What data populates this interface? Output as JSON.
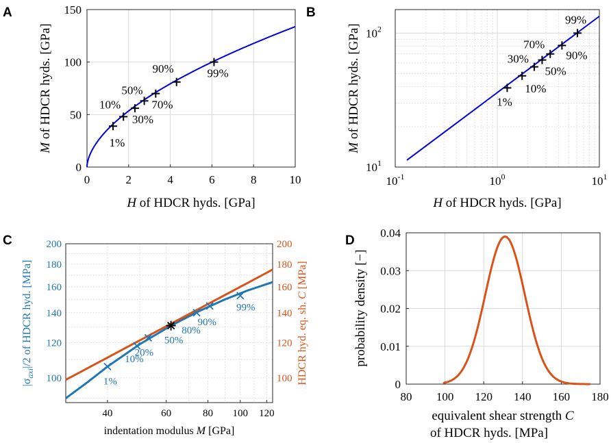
{
  "colors": {
    "blue": "#0000e6",
    "matlab_blue": "#1f77b4",
    "matlab_orange": "#d95319",
    "black": "#000000"
  },
  "chart_data": [
    {
      "panel": "A",
      "type": "line",
      "xlabel_sym": "H",
      "xlabel_rest": " of HDCR hyds. [GPa]",
      "ylabel_sym": "M",
      "ylabel_rest": " of HDCR hyds. [GPa]",
      "xlim": [
        0,
        10
      ],
      "ylim": [
        0,
        150
      ],
      "xticks": [
        "0",
        "2",
        "4",
        "6",
        "8",
        "10"
      ],
      "yticks": [
        "0",
        "50",
        "100",
        "150"
      ],
      "curve": {
        "model": "M = a*H^b",
        "a": 36.0,
        "b": 0.57,
        "x_start": 0,
        "x_end": 10
      },
      "markers": [
        {
          "label": "1%",
          "x": 1.25,
          "y": 39
        },
        {
          "label": "10%",
          "x": 1.75,
          "y": 48
        },
        {
          "label": "30%",
          "x": 2.3,
          "y": 56
        },
        {
          "label": "50%",
          "x": 2.75,
          "y": 63
        },
        {
          "label": "70%",
          "x": 3.3,
          "y": 70
        },
        {
          "label": "90%",
          "x": 4.3,
          "y": 81
        },
        {
          "label": "99%",
          "x": 6.1,
          "y": 100
        }
      ]
    },
    {
      "panel": "B",
      "type": "line",
      "scale": "log-log",
      "xlabel_sym": "H",
      "xlabel_rest": " of HDCR hyds. [GPa]",
      "ylabel_sym": "M",
      "ylabel_rest": " of HDCR hyds. [GPa]",
      "xlim": [
        0.1,
        10
      ],
      "ylim": [
        10,
        150
      ],
      "xticks": [
        {
          "base": "10",
          "exp": "-1"
        },
        {
          "base": "10",
          "exp": "0"
        },
        {
          "base": "10",
          "exp": "1"
        }
      ],
      "yticks": [
        {
          "base": "10",
          "exp": "1"
        },
        {
          "base": "10",
          "exp": "2"
        }
      ],
      "curve": {
        "model": "M = a*H^b",
        "a": 36.0,
        "b": 0.57,
        "x_start": 0.13,
        "x_end": 10
      },
      "markers": [
        {
          "label": "1%",
          "x": 1.25,
          "y": 39
        },
        {
          "label": "10%",
          "x": 1.75,
          "y": 48
        },
        {
          "label": "30%",
          "x": 2.3,
          "y": 56
        },
        {
          "label": "50%",
          "x": 2.75,
          "y": 63
        },
        {
          "label": "70%",
          "x": 3.3,
          "y": 70
        },
        {
          "label": "90%",
          "x": 4.3,
          "y": 81
        },
        {
          "label": "99%",
          "x": 6.1,
          "y": 100
        }
      ]
    },
    {
      "panel": "C",
      "type": "line",
      "scale": "log-log",
      "xlabel_text": "indentation modulus ",
      "xlabel_sym": "M",
      "xlabel_unit": " [GPa]",
      "ylabel_left": "|σaxi|/2 of HDCR hyd. [MPa]",
      "ylabel_left_pre": "|σ",
      "ylabel_left_sub": "axi",
      "ylabel_left_post": "|/2 of HDCR hyd. [MPa]",
      "ylabel_right_text": "HDCR hyd. eq. sh. ",
      "ylabel_right_sym": "C",
      "ylabel_right_unit": " [MPa]",
      "xlim": [
        30,
        125
      ],
      "ylim_left": [
        88,
        200
      ],
      "ylim_right": [
        88,
        200
      ],
      "xticks": [
        "40",
        "60",
        "80",
        "100",
        "120"
      ],
      "yticks_left": [
        "100",
        "120",
        "140",
        "160",
        "180",
        "200"
      ],
      "yticks_right": [
        "100",
        "120",
        "140",
        "160",
        "180",
        "200"
      ],
      "series": [
        {
          "name": "|σaxi|/2 of HDCR hyd.",
          "axis": "left",
          "points": [
            [
              30,
              90
            ],
            [
              35,
              98
            ],
            [
              40,
              106
            ],
            [
              50,
              119
            ],
            [
              62,
              131
            ],
            [
              75,
              141
            ],
            [
              90,
              150
            ],
            [
              105,
              157
            ],
            [
              125,
              164
            ]
          ]
        },
        {
          "name": "HDCR hyd. eq. sh. C",
          "axis": "right",
          "points": [
            [
              30,
              99
            ],
            [
              125,
              175
            ]
          ]
        }
      ],
      "markers": [
        {
          "label": "1%",
          "x": 40,
          "y": 106
        },
        {
          "label": "10%",
          "x": 49,
          "y": 118
        },
        {
          "label": "20%",
          "x": 53,
          "y": 123
        },
        {
          "label": "50%",
          "x": 62,
          "y": 131
        },
        {
          "label": "80%",
          "x": 74,
          "y": 140
        },
        {
          "label": "90%",
          "x": 81,
          "y": 145
        },
        {
          "label": "99%",
          "x": 100,
          "y": 153
        }
      ],
      "intersection": {
        "x": 62,
        "y": 131
      }
    },
    {
      "panel": "D",
      "type": "line",
      "xlabel_line1_text": "equivalent shear strength ",
      "xlabel_line1_sym": "C",
      "xlabel_line2": "of HDCR hyds. [MPa]",
      "ylabel": "probability density [−]",
      "xlim": [
        80,
        180
      ],
      "ylim": [
        0,
        0.04
      ],
      "xticks": [
        "80",
        "100",
        "120",
        "140",
        "160",
        "180"
      ],
      "yticks": [
        "0",
        "0.01",
        "0.02",
        "0.03",
        "0.04"
      ],
      "curve": {
        "model": "normal pdf",
        "mean": 131,
        "sd": 10.2,
        "x_start": 99,
        "x_end": 175,
        "peak": 0.039
      }
    }
  ]
}
